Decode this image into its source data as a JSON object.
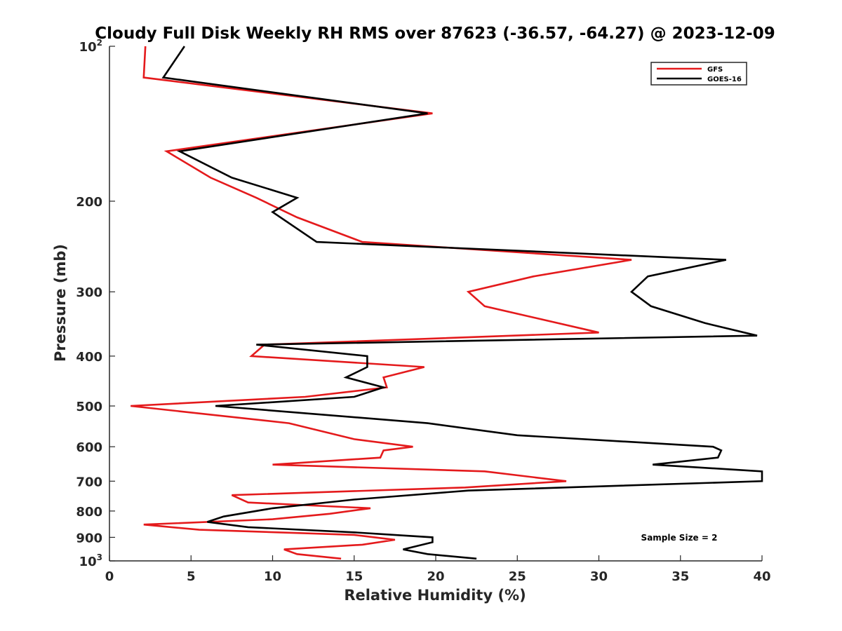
{
  "chart_data": {
    "type": "line",
    "title": "Cloudy Full Disk Weekly RH RMS over 87623 (-36.57, -64.27) @ 2023-12-09",
    "xlabel": "Relative Humidity (%)",
    "ylabel": "Pressure (mb)",
    "xlim": [
      0,
      40
    ],
    "ylim": [
      100,
      1000
    ],
    "yscale": "log",
    "y_reversed": true,
    "grid": false,
    "legend_position": "top-right",
    "x_ticks": [
      "0",
      "5",
      "10",
      "15",
      "20",
      "25",
      "30",
      "35",
      "40"
    ],
    "y_ticks": [
      {
        "value": 100,
        "base": "10",
        "exp": "2"
      },
      {
        "value": 200,
        "label": "200"
      },
      {
        "value": 300,
        "label": "300"
      },
      {
        "value": 400,
        "label": "400"
      },
      {
        "value": 500,
        "label": "500"
      },
      {
        "value": 600,
        "label": "600"
      },
      {
        "value": 700,
        "label": "700"
      },
      {
        "value": 800,
        "label": "800"
      },
      {
        "value": 900,
        "label": "900"
      },
      {
        "value": 1000,
        "base": "10",
        "exp": "3"
      }
    ],
    "annotation": "Sample Size = 2",
    "series": [
      {
        "name": "GFS",
        "color": "#e41a1c",
        "points": [
          [
            2.2,
            100
          ],
          [
            2.1,
            115
          ],
          [
            19.8,
            135
          ],
          [
            3.5,
            160
          ],
          [
            6.2,
            180
          ],
          [
            9.0,
            197
          ],
          [
            11.5,
            215
          ],
          [
            15.5,
            240
          ],
          [
            32.0,
            260
          ],
          [
            26.0,
            280
          ],
          [
            22.0,
            300
          ],
          [
            23.0,
            320
          ],
          [
            30.0,
            360
          ],
          [
            9.5,
            380
          ],
          [
            8.7,
            400
          ],
          [
            19.3,
            420
          ],
          [
            16.8,
            440
          ],
          [
            17.0,
            460
          ],
          [
            12.0,
            480
          ],
          [
            1.3,
            500
          ],
          [
            11.0,
            540
          ],
          [
            15.0,
            580
          ],
          [
            18.6,
            600
          ],
          [
            16.8,
            610
          ],
          [
            16.6,
            630
          ],
          [
            10.0,
            650
          ],
          [
            23.0,
            670
          ],
          [
            28.0,
            700
          ],
          [
            21.8,
            720
          ],
          [
            7.5,
            745
          ],
          [
            8.5,
            770
          ],
          [
            16.0,
            790
          ],
          [
            13.5,
            810
          ],
          [
            10.0,
            830
          ],
          [
            2.1,
            850
          ],
          [
            5.5,
            870
          ],
          [
            15.0,
            890
          ],
          [
            17.5,
            910
          ],
          [
            15.5,
            930
          ],
          [
            10.7,
            950
          ],
          [
            11.5,
            970
          ],
          [
            14.2,
            990
          ]
        ]
      },
      {
        "name": "GOES-16",
        "color": "#000000",
        "points": [
          [
            4.6,
            100
          ],
          [
            3.3,
            115
          ],
          [
            19.5,
            135
          ],
          [
            4.3,
            160
          ],
          [
            7.5,
            180
          ],
          [
            11.5,
            197
          ],
          [
            10.0,
            210
          ],
          [
            12.7,
            240
          ],
          [
            37.8,
            260
          ],
          [
            33.0,
            280
          ],
          [
            32.0,
            300
          ],
          [
            33.2,
            320
          ],
          [
            36.5,
            345
          ],
          [
            39.7,
            365
          ],
          [
            9.0,
            380
          ],
          [
            15.8,
            400
          ],
          [
            15.8,
            420
          ],
          [
            14.5,
            440
          ],
          [
            16.8,
            460
          ],
          [
            15.0,
            480
          ],
          [
            6.5,
            500
          ],
          [
            19.5,
            540
          ],
          [
            25.0,
            570
          ],
          [
            37.0,
            600
          ],
          [
            37.5,
            610
          ],
          [
            37.3,
            630
          ],
          [
            33.3,
            650
          ],
          [
            40.0,
            670
          ],
          [
            40.0,
            700
          ],
          [
            22.0,
            730
          ],
          [
            15.0,
            760
          ],
          [
            10.0,
            790
          ],
          [
            7.0,
            820
          ],
          [
            6.0,
            840
          ],
          [
            8.5,
            860
          ],
          [
            15.0,
            880
          ],
          [
            19.8,
            900
          ],
          [
            19.8,
            920
          ],
          [
            18.0,
            950
          ],
          [
            19.5,
            970
          ],
          [
            22.5,
            990
          ]
        ]
      }
    ]
  }
}
